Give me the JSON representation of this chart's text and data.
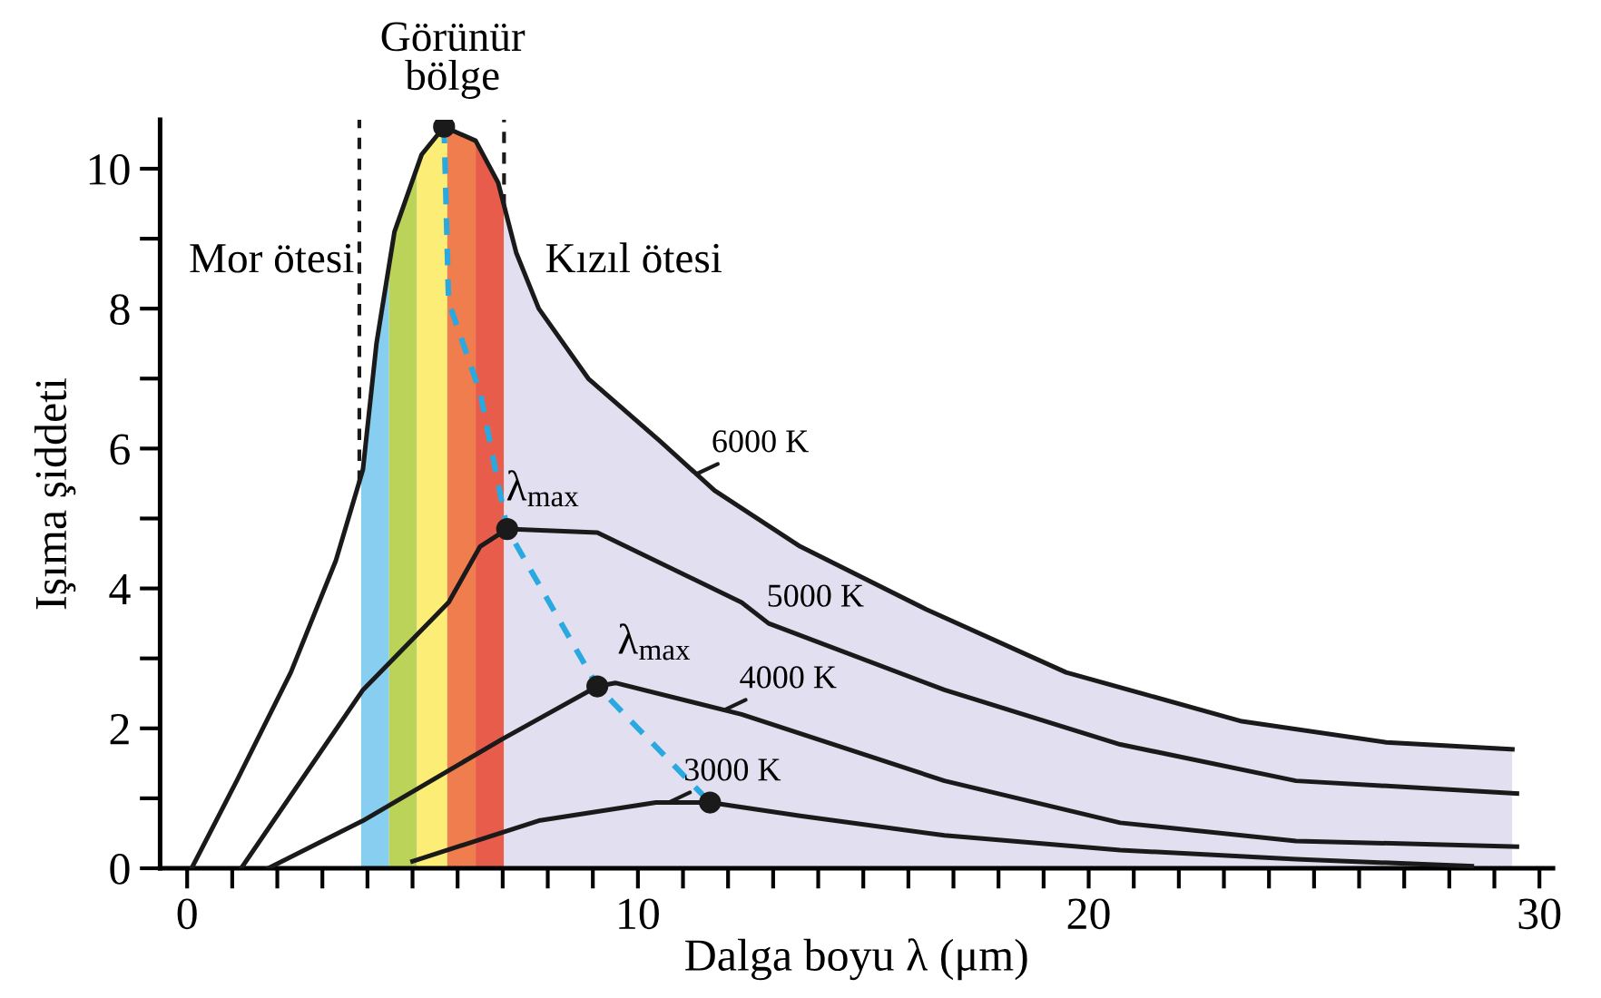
{
  "chart_data": {
    "type": "line",
    "xlabel": "Dalga boyu λ (μm)",
    "ylabel": "Işıma şiddeti",
    "xlim": [
      -0.6,
      30.3
    ],
    "xticks": [
      0,
      {
        "value": 1,
        "label": null
      },
      {
        "value": 2,
        "label": null
      },
      {
        "value": 3,
        "label": null
      },
      {
        "value": 4,
        "label": null
      },
      {
        "value": 5,
        "label": null
      },
      {
        "value": 6,
        "label": null
      },
      {
        "value": 7,
        "label": null
      },
      {
        "value": 8,
        "label": null
      },
      {
        "value": 9,
        "label": null
      },
      10,
      {
        "value": 11,
        "label": null
      },
      {
        "value": 12,
        "label": null
      },
      {
        "value": 13,
        "label": null
      },
      {
        "value": 14,
        "label": null
      },
      {
        "value": 15,
        "label": null
      },
      {
        "value": 16,
        "label": null
      },
      {
        "value": 17,
        "label": null
      },
      {
        "value": 18,
        "label": null
      },
      {
        "value": 19,
        "label": null
      },
      20,
      {
        "value": 21,
        "label": null
      },
      {
        "value": 22,
        "label": null
      },
      {
        "value": 23,
        "label": null
      },
      {
        "value": 24,
        "label": null
      },
      {
        "value": 25,
        "label": null
      },
      {
        "value": 26,
        "label": null
      },
      {
        "value": 27,
        "label": null
      },
      {
        "value": 28,
        "label": null
      },
      {
        "value": 29,
        "label": null
      },
      30
    ],
    "ylim": [
      0,
      10.7
    ],
    "yticks": [
      0,
      {
        "value": 1,
        "label": null
      },
      2,
      {
        "value": 3,
        "label": null
      },
      4,
      {
        "value": 5,
        "label": null
      },
      6,
      {
        "value": 7,
        "label": null
      },
      8,
      {
        "value": 9,
        "label": null
      },
      10
    ],
    "grid": false,
    "legend": false,
    "series": [
      {
        "name": "6000 K",
        "color": "#1a1a1a",
        "line_style": "solid",
        "x": [
          0.1,
          1.1,
          2.3,
          3.3,
          3.9,
          4.2,
          4.6,
          5.2,
          5.7,
          6.4,
          6.9,
          7.3,
          7.8,
          8.9,
          10.5,
          11.7,
          13.6,
          16.4,
          19.5,
          23.4,
          26.6,
          29.4
        ],
        "values": [
          0,
          1.25,
          2.8,
          4.4,
          5.7,
          7.5,
          9.1,
          10.2,
          10.6,
          10.4,
          9.8,
          8.8,
          8.0,
          7.0,
          6.1,
          5.4,
          4.6,
          3.7,
          2.8,
          2.1,
          1.8,
          1.7
        ]
      },
      {
        "name": "5000 K",
        "color": "#1a1a1a",
        "line_style": "solid",
        "x": [
          1.2,
          3.9,
          5.8,
          6.5,
          7.1,
          9.1,
          12.3,
          12.9,
          16.8,
          20.7,
          24.6,
          29.5
        ],
        "values": [
          0,
          2.55,
          3.8,
          4.6,
          4.85,
          4.8,
          3.8,
          3.5,
          2.55,
          1.77,
          1.25,
          1.07
        ]
      },
      {
        "name": "4000 K",
        "color": "#1a1a1a",
        "line_style": "solid",
        "x": [
          1.8,
          3.9,
          7.0,
          9.1,
          9.5,
          12.3,
          16.8,
          20.7,
          24.6,
          29.5
        ],
        "values": [
          0,
          0.68,
          1.85,
          2.6,
          2.65,
          2.2,
          1.25,
          0.65,
          0.39,
          0.31
        ]
      },
      {
        "name": "3000 K",
        "color": "#1a1a1a",
        "line_style": "solid",
        "x": [
          5.0,
          7.8,
          10.4,
          11.6,
          13.6,
          16.8,
          20.7,
          24.6,
          28.5
        ],
        "values": [
          0.1,
          0.68,
          0.94,
          0.94,
          0.75,
          0.47,
          0.26,
          0.13,
          0.03
        ]
      },
      {
        "color": "#29a9e0",
        "line_style": "dashed",
        "x": [
          5.7,
          5.8,
          6.5,
          6.9,
          7.1,
          9.1,
          11.6
        ],
        "values": [
          10.6,
          8.1,
          6.8,
          5.5,
          4.85,
          2.6,
          0.94
        ]
      },
      {
        "type": "scatter",
        "color": "#1a1a1a",
        "marker": "circle",
        "x": [
          5.7,
          7.1,
          9.1,
          11.6
        ],
        "values": [
          10.6,
          4.85,
          2.6,
          0.94
        ]
      }
    ],
    "bands": [
      {
        "axis": "x",
        "from": 3.86,
        "to": 4.48,
        "color": "#87cef0"
      },
      {
        "axis": "x",
        "from": 4.48,
        "to": 5.1,
        "color": "#bcd35a"
      },
      {
        "axis": "x",
        "from": 5.1,
        "to": 5.77,
        "color": "#fced76"
      },
      {
        "axis": "x",
        "from": 5.77,
        "to": 6.4,
        "color": "#ef7d4e"
      },
      {
        "axis": "x",
        "from": 6.4,
        "to": 7.03,
        "color": "#e85c4c"
      },
      {
        "axis": "x",
        "from": 7.03,
        "to": 29.4,
        "color": "#e1dff0"
      }
    ],
    "ref_lines": [
      {
        "axis": "x",
        "value": 3.82,
        "color": "#1a1a1a",
        "line_style": "dashed"
      },
      {
        "axis": "x",
        "value": 7.03,
        "color": "#1a1a1a",
        "line_style": "dashed"
      }
    ],
    "annotations": [
      "Görünür\nbölge",
      "Mor ötesi",
      "Kızıl ötesi",
      "λ$_{max}$",
      "λ$_{max}$"
    ]
  }
}
